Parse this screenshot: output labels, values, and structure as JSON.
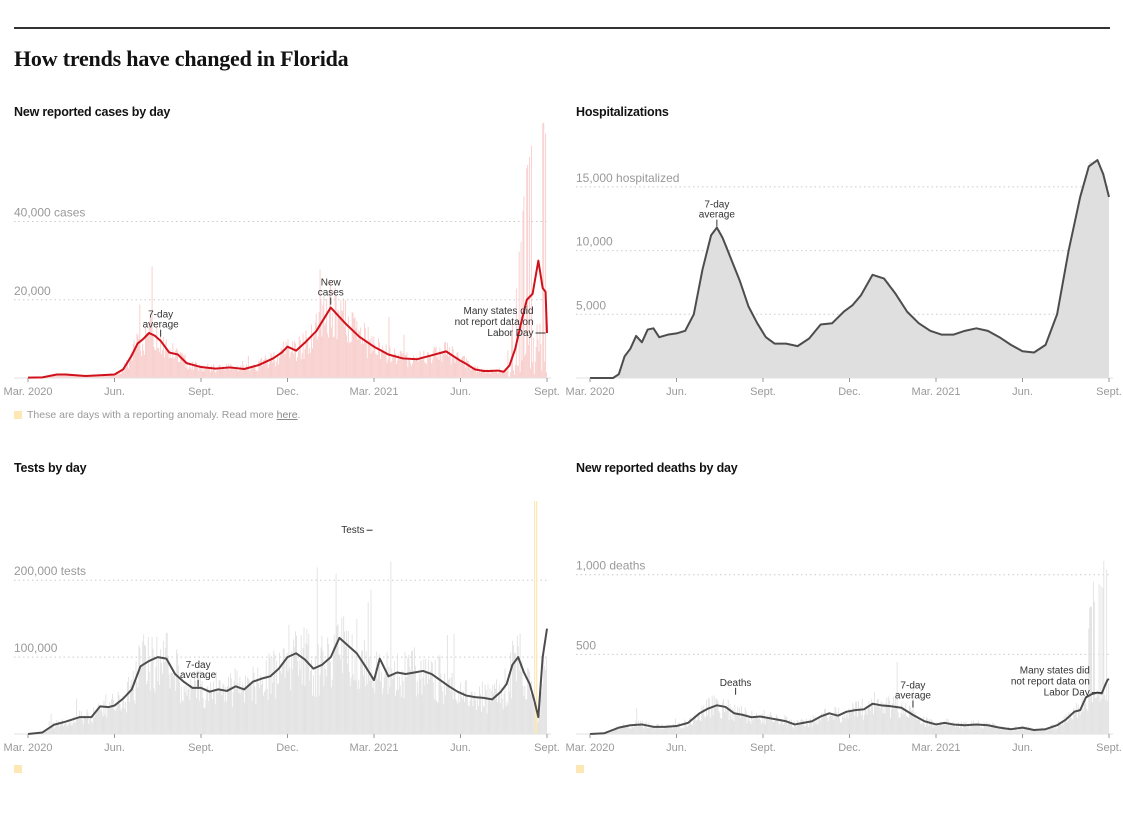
{
  "page": {
    "title": "How trends have changed in Florida",
    "anomaly_note": "These are days with a reporting anomaly. Read more ",
    "anomaly_link": "here",
    "anomaly_note_end": "."
  },
  "colors": {
    "cases_line": "#d0111b",
    "cases_bars": "#f7c8c6",
    "gray_line": "#4d4d4d",
    "gray_bars": "#dedede",
    "anomaly": "#fde7b4",
    "axis_text": "#999999",
    "grid": "#cccccc"
  },
  "chart_data": [
    {
      "id": "cases",
      "type": "area",
      "title": "New reported cases by day",
      "xlabel": "",
      "ylabel": "cases",
      "ylim": [
        0,
        57000
      ],
      "yticks": [
        {
          "value": 20000,
          "label": "20,000"
        },
        {
          "value": 40000,
          "label": "40,000 cases"
        }
      ],
      "xticks": [
        "Mar. 2020",
        "Jun.",
        "Sept.",
        "Dec.",
        "Mar. 2021",
        "Jun.",
        "Sept."
      ],
      "x_domain_months": [
        0,
        18
      ],
      "series": [
        {
          "name": "7-day average",
          "x_months": [
            0,
            0.5,
            1,
            1.3,
            2,
            2.5,
            3,
            3.3,
            3.6,
            3.8,
            4,
            4.2,
            4.4,
            4.6,
            4.9,
            5.2,
            5.5,
            6,
            6.5,
            7,
            7.5,
            8,
            8.5,
            8.8,
            9,
            9.3,
            9.6,
            10,
            10.5,
            11,
            11.5,
            12,
            12.5,
            13,
            13.5,
            14,
            14.5,
            15,
            15.2,
            15.5,
            15.8,
            16,
            16.3,
            16.5,
            16.7,
            16.9,
            17.1,
            17.3,
            17.5,
            17.7,
            17.85,
            17.95,
            18
          ],
          "values": [
            100,
            150,
            900,
            900,
            500,
            700,
            900,
            2200,
            5800,
            8800,
            10000,
            11500,
            10800,
            9500,
            6500,
            6000,
            3800,
            2800,
            2400,
            2700,
            2300,
            3300,
            5000,
            6500,
            8000,
            7000,
            9000,
            12000,
            18000,
            14000,
            10500,
            8000,
            6000,
            5000,
            4800,
            5800,
            6800,
            4400,
            3600,
            2200,
            1800,
            1800,
            1900,
            1600,
            3200,
            7500,
            14000,
            20000,
            21500,
            30000,
            23000,
            22000,
            11500
          ]
        },
        {
          "name": "New cases",
          "note": "daily bars"
        }
      ],
      "annotations": [
        {
          "text": [
            "7-day",
            "average"
          ],
          "x_months": 4.6,
          "value": 10300
        },
        {
          "text": [
            "New",
            "cases"
          ],
          "x_months": 10.5,
          "value": 18500
        },
        {
          "text": [
            "Many states did",
            "not report data on",
            "Labor Day"
          ],
          "x_months": 17.95,
          "value": 11500,
          "align": "right"
        }
      ]
    },
    {
      "id": "hospitalizations",
      "type": "area",
      "title": "Hospitalizations",
      "ylabel": "hospitalized",
      "ylim": [
        0,
        17500
      ],
      "yticks": [
        {
          "value": 5000,
          "label": "5,000"
        },
        {
          "value": 10000,
          "label": "10,000"
        },
        {
          "value": 15000,
          "label": "15,000 hospitalized"
        }
      ],
      "xticks": [
        "Mar. 2020",
        "Jun.",
        "Sept.",
        "Dec.",
        "Mar. 2021",
        "Jun.",
        "Sept."
      ],
      "x_domain_months": [
        0,
        18
      ],
      "series": [
        {
          "name": "7-day average",
          "x_months": [
            0,
            0.5,
            0.8,
            1.0,
            1.2,
            1.4,
            1.6,
            1.8,
            2.0,
            2.2,
            2.4,
            2.7,
            3.0,
            3.3,
            3.6,
            3.9,
            4.2,
            4.4,
            4.6,
            4.9,
            5.2,
            5.5,
            5.8,
            6.1,
            6.4,
            6.8,
            7.2,
            7.6,
            8.0,
            8.4,
            8.8,
            9.1,
            9.4,
            9.8,
            10.2,
            10.6,
            11.0,
            11.4,
            11.8,
            12.2,
            12.6,
            13.0,
            13.4,
            13.8,
            14.2,
            14.6,
            15.0,
            15.4,
            15.8,
            16.2,
            16.6,
            17.0,
            17.3,
            17.6,
            17.8,
            18.0
          ],
          "values": [
            0,
            0,
            0,
            300,
            1700,
            2300,
            3300,
            2800,
            3800,
            3900,
            3200,
            3400,
            3500,
            3700,
            5000,
            8500,
            11200,
            11800,
            11000,
            9300,
            7600,
            5600,
            4300,
            3200,
            2700,
            2700,
            2500,
            3100,
            4200,
            4300,
            5200,
            5700,
            6500,
            8100,
            7800,
            6600,
            5200,
            4300,
            3700,
            3400,
            3400,
            3700,
            3900,
            3700,
            3200,
            2600,
            2100,
            2000,
            2600,
            5000,
            10000,
            14200,
            16600,
            17100,
            16000,
            14200
          ]
        }
      ],
      "annotations": [
        {
          "text": [
            "7-day",
            "average"
          ],
          "x_months": 4.4,
          "value": 11800
        }
      ]
    },
    {
      "id": "tests",
      "type": "area",
      "title": "Tests by day",
      "ylabel": "tests",
      "ylim": [
        0,
        290000
      ],
      "yticks": [
        {
          "value": 100000,
          "label": "100,000"
        },
        {
          "value": 200000,
          "label": "200,000 tests"
        }
      ],
      "xticks": [
        "Mar. 2020",
        "Jun.",
        "Sept.",
        "Dec.",
        "Mar. 2021",
        "Jun.",
        "Sept."
      ],
      "x_domain_months": [
        0,
        18
      ],
      "series": [
        {
          "name": "7-day average",
          "x_months": [
            0,
            0.5,
            0.9,
            1.3,
            1.8,
            2.2,
            2.5,
            2.8,
            3.0,
            3.3,
            3.6,
            3.9,
            4.2,
            4.5,
            4.8,
            5.1,
            5.4,
            5.7,
            6.0,
            6.3,
            6.6,
            6.9,
            7.2,
            7.5,
            7.8,
            8.1,
            8.4,
            8.7,
            9.0,
            9.3,
            9.6,
            9.9,
            10.2,
            10.5,
            10.8,
            11.1,
            11.4,
            11.7,
            12.0,
            12.2,
            12.5,
            12.8,
            13.1,
            13.4,
            13.7,
            14.0,
            14.3,
            14.6,
            14.9,
            15.2,
            15.5,
            15.8,
            16.1,
            16.4,
            16.6,
            16.8,
            17.0,
            17.2,
            17.4,
            17.55,
            17.7,
            17.85,
            18.0
          ],
          "values": [
            0,
            2000,
            12000,
            16000,
            22000,
            22000,
            36000,
            35000,
            37000,
            46000,
            58000,
            88000,
            95000,
            100000,
            98000,
            78000,
            68000,
            60000,
            60000,
            55000,
            58000,
            56000,
            62000,
            58000,
            68000,
            72000,
            75000,
            85000,
            100000,
            105000,
            97000,
            85000,
            90000,
            100000,
            125000,
            115000,
            105000,
            88000,
            70000,
            98000,
            75000,
            80000,
            78000,
            80000,
            82000,
            78000,
            70000,
            62000,
            55000,
            50000,
            48000,
            47000,
            45000,
            55000,
            65000,
            90000,
            100000,
            80000,
            65000,
            45000,
            22000,
            100000,
            137000
          ]
        },
        {
          "name": "Tests",
          "note": "daily bars"
        }
      ],
      "annotations": [
        {
          "text": [
            "7-day",
            "average"
          ],
          "x_months": 5.9,
          "value": 60000
        },
        {
          "text": [
            "Tests"
          ],
          "x_months": 11.95,
          "value": 265000,
          "align": "left-label"
        }
      ]
    },
    {
      "id": "deaths",
      "type": "area",
      "title": "New reported deaths by day",
      "ylabel": "deaths",
      "ylim": [
        0,
        1400
      ],
      "yticks": [
        {
          "value": 500,
          "label": "500"
        },
        {
          "value": 1000,
          "label": "1,000 deaths"
        }
      ],
      "xticks": [
        "Mar. 2020",
        "Jun.",
        "Sept.",
        "Dec.",
        "Mar. 2021",
        "Jun.",
        "Sept."
      ],
      "x_domain_months": [
        0,
        18
      ],
      "series": [
        {
          "name": "7-day average",
          "x_months": [
            0,
            0.5,
            1.0,
            1.4,
            1.8,
            2.2,
            2.6,
            3.0,
            3.4,
            3.8,
            4.1,
            4.4,
            4.7,
            5.0,
            5.3,
            5.6,
            5.9,
            6.2,
            6.5,
            6.8,
            7.1,
            7.4,
            7.7,
            8.0,
            8.3,
            8.6,
            8.9,
            9.2,
            9.5,
            9.8,
            10.1,
            10.4,
            10.8,
            11.2,
            11.6,
            12.0,
            12.3,
            12.6,
            13.0,
            13.4,
            13.8,
            14.2,
            14.6,
            15.0,
            15.4,
            15.8,
            16.2,
            16.5,
            16.8,
            17.0,
            17.2,
            17.4,
            17.6,
            17.75,
            17.85,
            17.95,
            18.0
          ],
          "values": [
            0,
            5,
            40,
            55,
            60,
            45,
            45,
            50,
            70,
            130,
            160,
            180,
            170,
            130,
            120,
            105,
            110,
            100,
            90,
            80,
            60,
            70,
            80,
            110,
            130,
            115,
            140,
            150,
            155,
            190,
            180,
            175,
            165,
            120,
            80,
            60,
            70,
            60,
            55,
            60,
            55,
            40,
            30,
            40,
            25,
            30,
            55,
            90,
            140,
            150,
            230,
            250,
            260,
            255,
            300,
            340,
            345
          ]
        },
        {
          "name": "Deaths",
          "note": "daily bars"
        }
      ],
      "annotations": [
        {
          "text": [
            "Deaths"
          ],
          "x_months": 5.05,
          "value": 240
        },
        {
          "text": [
            "7-day",
            "average"
          ],
          "x_months": 11.2,
          "value": 160
        },
        {
          "text": [
            "Many states did",
            "not report data on",
            "Labor Day"
          ],
          "x_months": 17.75,
          "value": 260,
          "align": "right"
        }
      ]
    }
  ]
}
